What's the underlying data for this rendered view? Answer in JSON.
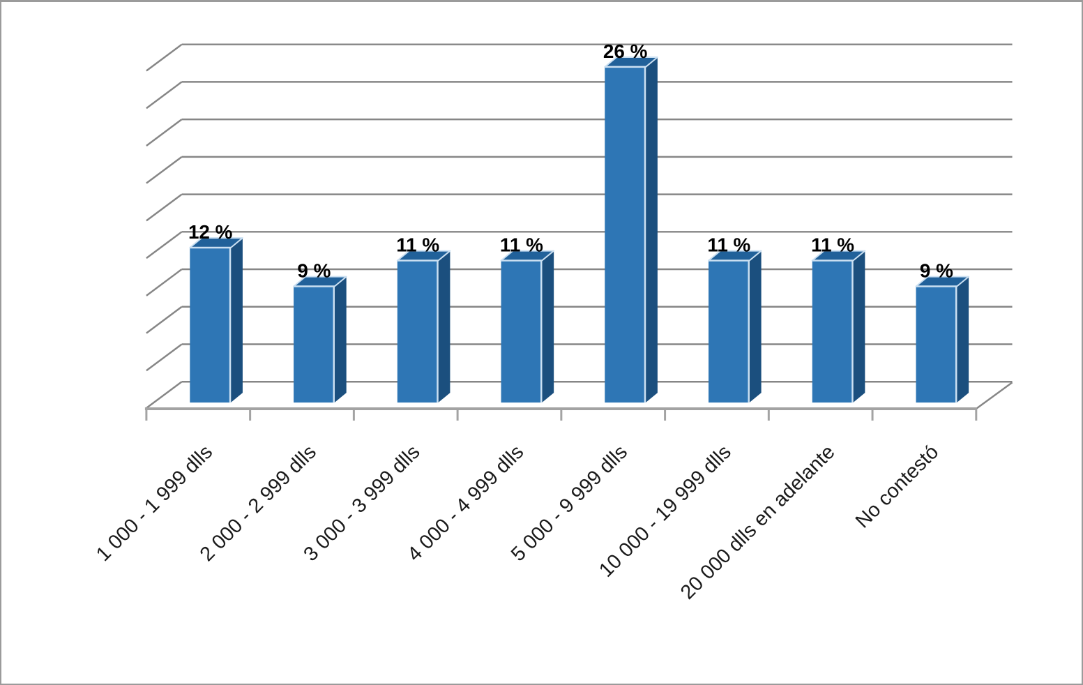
{
  "chart_data": {
    "type": "bar",
    "variant": "3d-column",
    "title": "",
    "categories": [
      "1 000 - 1 999 dlls",
      "2 000 - 2 999 dlls",
      "3 000 - 3 999 dlls",
      "4 000 - 4 999 dlls",
      "5 000 - 9 999 dlls",
      "10 000 - 19 999 dlls",
      "20 000 dlls en adelante",
      "No contestó"
    ],
    "values": [
      12,
      9,
      11,
      11,
      26,
      11,
      11,
      9
    ],
    "data_labels": [
      "12 %",
      "9 %",
      "11 %",
      "11 %",
      "26 %",
      "11 %",
      "11 %",
      "9 %"
    ],
    "unit": "%",
    "xlabel": "",
    "ylabel": "",
    "ylim": [
      0,
      27
    ],
    "gridline_step_pct": 3,
    "grid": true,
    "legend": false,
    "y_tick_labels_visible": false,
    "category_label_rotation_deg": -45,
    "colors": {
      "bar_front": "#2E76B5",
      "bar_side": "#1B4F7E",
      "bar_top": "#21619A",
      "bar_highlight": "#CBE0F2",
      "gridline": "#868686",
      "axis": "#A3A3A3",
      "value_label_text": "#000000",
      "category_text": "#1a1a1a",
      "background": "#FFFFFF",
      "border": "#9B9B9B"
    }
  }
}
